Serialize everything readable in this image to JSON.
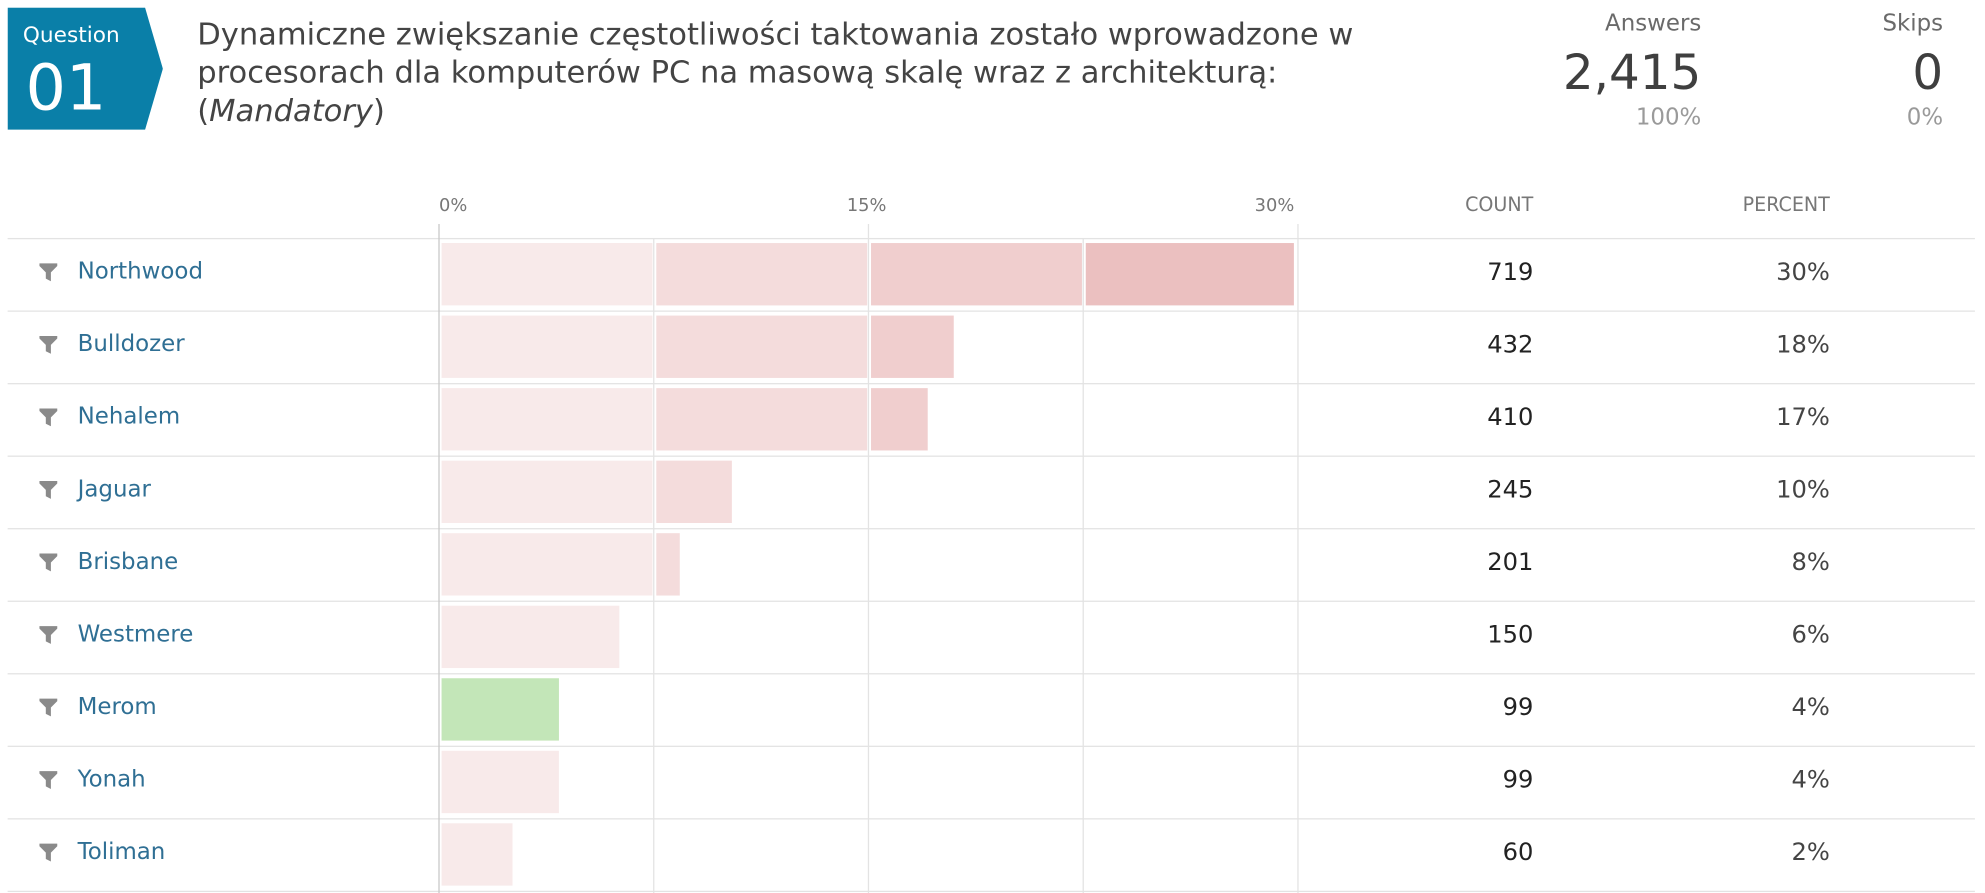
{
  "question": {
    "label": "Question",
    "number": "01",
    "text": "Dynamiczne zwiększanie częstotliwości taktowania zostało wprowadzone w procesorach dla komputerów PC na masową skalę wraz z architekturą:",
    "mandatory": "Mandatory"
  },
  "stats": {
    "answers_label": "Answers",
    "answers_value": "2,415",
    "answers_pct": "100%",
    "skips_label": "Skips",
    "skips_value": "0",
    "skips_pct": "0%"
  },
  "table": {
    "count_header": "COUNT",
    "percent_header": "PERCENT"
  },
  "colors": {
    "badge": "#0a7fa8",
    "bar_default": "#e9b9b9",
    "bar_highlight": "#c3e6b8",
    "label_link": "#2f6f94"
  },
  "chart_data": {
    "type": "bar",
    "orientation": "horizontal",
    "xlim": [
      0,
      30
    ],
    "x_ticks": [
      "0%",
      "15%",
      "30%"
    ],
    "categories": [
      "Northwood",
      "Bulldozer",
      "Nehalem",
      "Jaguar",
      "Brisbane",
      "Westmere",
      "Merom",
      "Yonah",
      "Toliman"
    ],
    "counts": [
      "719",
      "432",
      "410",
      "245",
      "201",
      "150",
      "99",
      "99",
      "60"
    ],
    "percents": [
      "30%",
      "18%",
      "17%",
      "10%",
      "8%",
      "6%",
      "4%",
      "4%",
      "2%"
    ],
    "values": [
      29.77,
      17.89,
      16.98,
      10.14,
      8.32,
      6.21,
      4.1,
      4.1,
      2.48
    ],
    "highlight_category": "Merom"
  }
}
